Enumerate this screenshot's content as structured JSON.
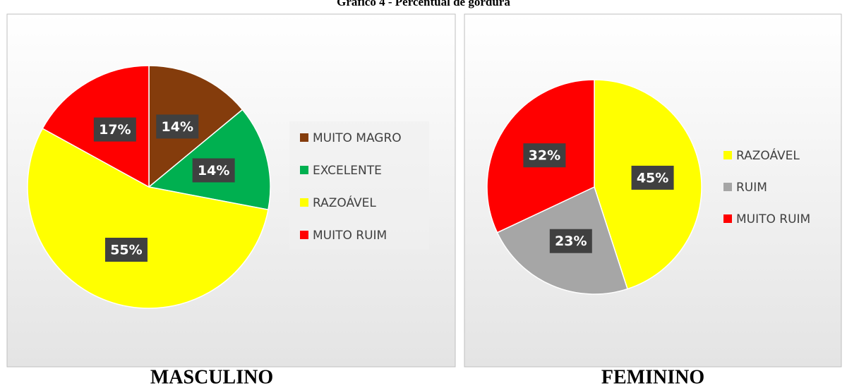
{
  "title": "Gráfico 4 - Percentual de gordura",
  "chart_data": [
    {
      "type": "pie",
      "title": "MASCULINO",
      "categories": [
        "MUITO MAGRO",
        "EXCELENTE",
        "RAZOÁVEL",
        "MUITO RUIM"
      ],
      "values": [
        14,
        14,
        55,
        17
      ],
      "value_labels": [
        "14%",
        "14%",
        "55%",
        "17%"
      ],
      "colors": [
        "#843c0c",
        "#00b050",
        "#ffff00",
        "#ff0000"
      ]
    },
    {
      "type": "pie",
      "title": "FEMININO",
      "categories": [
        "RAZOÁVEL",
        "RUIM",
        "MUITO RUIM"
      ],
      "values": [
        45,
        23,
        32
      ],
      "value_labels": [
        "45%",
        "23%",
        "32%"
      ],
      "colors": [
        "#ffff00",
        "#a6a6a6",
        "#ff0000"
      ]
    }
  ]
}
